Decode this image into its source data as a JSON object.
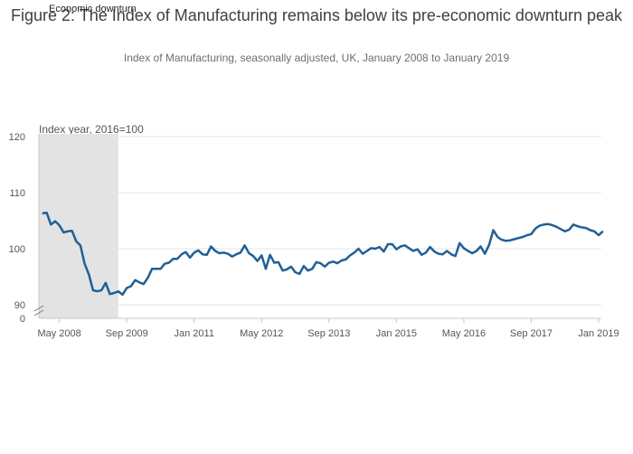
{
  "title": "Figure 2: The Index of Manufacturing remains below its pre-economic downturn peak",
  "subtitle": "Index of Manufacturing, seasonally adjusted, UK, January 2008 to January 2019",
  "legend_label": "Economic downturn",
  "colors": {
    "line": "#206095",
    "shade": "#e3e3e3",
    "grid": "#e6e6e6",
    "axis": "#c7c7c7"
  },
  "chart_data": {
    "type": "line",
    "title": "Figure 2: The Index of Manufacturing remains below its pre-economic downturn peak",
    "subtitle": "Index of Manufacturing, seasonally adjusted, UK, January 2008 to January 2019",
    "ylabel": "Index year, 2016=100",
    "xlabel": "",
    "ylim": [
      90,
      120
    ],
    "y_ticks": [
      120,
      110,
      100,
      90
    ],
    "y_break_tick": 0,
    "x_range": [
      "2008-01",
      "2019-01"
    ],
    "x_ticks": [
      {
        "date": "2008-05",
        "label": "May 2008"
      },
      {
        "date": "2009-09",
        "label": "Sep 2009"
      },
      {
        "date": "2011-01",
        "label": "Jan 2011"
      },
      {
        "date": "2012-05",
        "label": "May 2012"
      },
      {
        "date": "2013-09",
        "label": "Sep 2013"
      },
      {
        "date": "2015-01",
        "label": "Jan 2015"
      },
      {
        "date": "2016-05",
        "label": "May 2016"
      },
      {
        "date": "2017-09",
        "label": "Sep 2017"
      },
      {
        "date": "2019-01",
        "label": "Jan 2019"
      }
    ],
    "shaded_region": {
      "label": "Economic downturn",
      "start": "2008-01",
      "end": "2009-07"
    },
    "grid": true,
    "series": [
      {
        "start": "2008-01",
        "values": [
          106.3,
          106.4,
          104.3,
          104.9,
          104.2,
          102.9,
          103.1,
          103.2,
          101.3,
          100.6,
          97.3,
          95.4,
          92.6,
          92.4,
          92.6,
          93.9,
          91.9,
          92.1,
          92.4,
          91.8,
          93.0,
          93.3,
          94.4,
          94.0,
          93.7,
          94.8,
          96.4,
          96.4,
          96.4,
          97.3,
          97.5,
          98.2,
          98.2,
          99.0,
          99.4,
          98.4,
          99.3,
          99.7,
          99.0,
          98.9,
          100.4,
          99.6,
          99.2,
          99.3,
          99.1,
          98.6,
          99.0,
          99.3,
          100.6,
          99.2,
          98.7,
          97.8,
          98.8,
          96.4,
          98.9,
          97.5,
          97.6,
          96.1,
          96.3,
          96.8,
          95.8,
          95.5,
          96.9,
          96.1,
          96.4,
          97.6,
          97.4,
          96.8,
          97.5,
          97.7,
          97.4,
          97.9,
          98.1,
          98.8,
          99.3,
          100.0,
          99.1,
          99.6,
          100.1,
          100.0,
          100.3,
          99.5,
          100.8,
          100.8,
          99.9,
          100.4,
          100.6,
          100.1,
          99.6,
          99.9,
          98.9,
          99.3,
          100.3,
          99.5,
          99.1,
          99.0,
          99.6,
          99.0,
          98.7,
          101.0,
          100.1,
          99.6,
          99.2,
          99.6,
          100.4,
          99.1,
          100.7,
          103.3,
          102.1,
          101.6,
          101.4,
          101.5,
          101.7,
          101.9,
          102.1,
          102.4,
          102.6,
          103.6,
          104.1,
          104.3,
          104.4,
          104.2,
          103.9,
          103.5,
          103.1,
          103.4,
          104.3,
          104.0,
          103.8,
          103.7,
          103.3,
          103.1,
          102.4,
          103.1
        ]
      }
    ]
  }
}
